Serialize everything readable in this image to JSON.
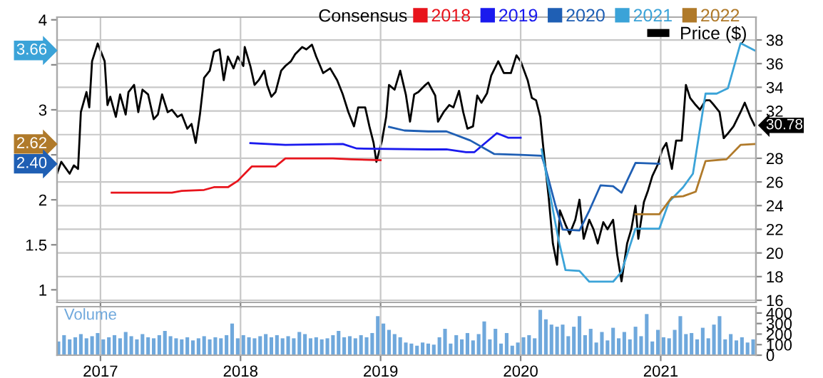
{
  "chart_data": [
    {
      "type": "line",
      "legend_title": "Consensus",
      "annotations": [
        "3.66",
        "2.62",
        "2.40"
      ],
      "legend": "top right",
      "grid": true,
      "tick_labels": "y",
      "xlim": [
        2016.69,
        2021.68
      ],
      "xticks": [
        2017,
        2018,
        2019,
        2020,
        2021
      ],
      "ylim": [
        0.86,
        4.03
      ],
      "yticks": [
        1,
        1.5,
        2,
        {
          "value": 2.5,
          "label": null
        },
        3,
        {
          "value": 3.5,
          "label": null
        },
        4
      ],
      "y2lim": [
        15.82,
        39.93
      ],
      "y2ticks": [
        16,
        18,
        20,
        22,
        24,
        26,
        28,
        {
          "value": 30,
          "label": null
        },
        32,
        34,
        36,
        38
      ],
      "series": [
        {
          "name": "2018",
          "color": "#e8141c",
          "x": [
            2017.08,
            2017.51,
            2017.58,
            2017.74,
            2017.81,
            2017.91,
            2017.98,
            2018.08,
            2018.25,
            2018.32,
            2018.66,
            2018.79,
            2019.0
          ],
          "values": [
            2.08,
            2.08,
            2.1,
            2.11,
            2.14,
            2.14,
            2.21,
            2.37,
            2.37,
            2.46,
            2.46,
            2.45,
            2.44
          ]
        },
        {
          "name": "2019",
          "color": "#1a1aee",
          "x": [
            2018.07,
            2018.32,
            2018.73,
            2018.83,
            2019.34,
            2019.47,
            2019.61,
            2019.67,
            2019.83,
            2019.91,
            2020.0
          ],
          "values": [
            2.63,
            2.61,
            2.62,
            2.57,
            2.56,
            2.56,
            2.53,
            2.53,
            2.74,
            2.69,
            2.69
          ]
        },
        {
          "name": "2020",
          "color": "#1f5fb4",
          "x": [
            2019.06,
            2019.17,
            2019.34,
            2019.47,
            2019.64,
            2019.81,
            2020.0,
            2020.15,
            2020.18,
            2020.25,
            2020.3,
            2020.42,
            2020.49,
            2020.57,
            2020.66,
            2020.72,
            2020.82,
            2020.99
          ],
          "values": [
            2.81,
            2.77,
            2.76,
            2.76,
            2.66,
            2.51,
            2.5,
            2.49,
            2.34,
            1.93,
            1.67,
            1.66,
            1.88,
            2.16,
            2.15,
            2.08,
            2.41,
            2.4
          ]
        },
        {
          "name": "2021",
          "color": "#3ba3d8",
          "x": [
            2020.15,
            2020.2,
            2020.27,
            2020.32,
            2020.42,
            2020.49,
            2020.66,
            2020.72,
            2020.82,
            2020.99,
            2021.06,
            2021.16,
            2021.23,
            2021.32,
            2021.4,
            2021.48,
            2021.57,
            2021.67
          ],
          "values": [
            2.56,
            2.14,
            1.56,
            1.22,
            1.21,
            1.09,
            1.09,
            1.2,
            1.68,
            1.68,
            1.98,
            2.14,
            2.29,
            3.18,
            3.18,
            3.24,
            3.74,
            3.66
          ]
        },
        {
          "name": "2022",
          "color": "#b07a2a",
          "x": [
            2020.82,
            2020.99,
            2021.08,
            2021.16,
            2021.25,
            2021.32,
            2021.47,
            2021.57,
            2021.67
          ],
          "values": [
            1.84,
            1.84,
            2.03,
            2.04,
            2.09,
            2.43,
            2.45,
            2.61,
            2.62
          ]
        },
        {
          "name": "Price ($)",
          "color": "#000000",
          "axis": "y2",
          "value_labels": [
            null,
            null,
            null,
            null,
            null,
            null,
            null,
            null,
            null,
            null,
            null,
            null,
            null,
            null,
            null,
            null,
            null,
            null,
            null,
            null,
            null,
            null,
            null,
            null,
            null,
            null,
            null,
            null,
            null,
            null,
            null,
            null,
            null,
            null,
            null,
            null,
            null,
            null,
            null,
            null,
            null,
            null,
            null,
            null,
            null,
            null,
            null,
            null,
            null,
            null,
            null,
            null,
            null,
            null,
            null,
            null,
            null,
            null,
            null,
            null,
            null,
            null,
            null,
            null,
            null,
            null,
            null,
            null,
            null,
            null,
            null,
            null,
            null,
            null,
            null,
            null,
            null,
            null,
            null,
            null,
            null,
            null,
            null,
            null,
            null,
            null,
            null,
            null,
            null,
            null,
            null,
            null,
            null,
            null,
            null,
            null,
            null,
            null,
            null,
            null,
            null,
            null,
            null,
            null,
            null,
            null,
            null,
            null,
            null,
            null,
            null,
            null,
            null,
            null,
            null,
            null,
            null,
            null,
            null,
            null,
            null,
            null,
            null,
            null,
            null,
            null,
            null,
            null,
            null,
            null,
            null,
            null,
            null,
            null,
            null,
            null,
            null,
            null,
            null,
            null,
            null,
            null,
            null,
            null,
            null,
            null,
            "30.78"
          ],
          "x": [
            2016.69,
            2016.72,
            2016.78,
            2016.81,
            2016.84,
            2016.86,
            2016.9,
            2016.92,
            2016.94,
            2016.98,
            2017.03,
            2017.05,
            2017.07,
            2017.11,
            2017.14,
            2017.18,
            2017.2,
            2017.24,
            2017.27,
            2017.3,
            2017.34,
            2017.38,
            2017.41,
            2017.44,
            2017.48,
            2017.51,
            2017.55,
            2017.58,
            2017.62,
            2017.65,
            2017.68,
            2017.71,
            2017.74,
            2017.78,
            2017.81,
            2017.85,
            2017.88,
            2017.91,
            2017.95,
            2017.98,
            2018.02,
            2018.03,
            2018.07,
            2018.1,
            2018.13,
            2018.17,
            2018.19,
            2018.22,
            2018.25,
            2018.29,
            2018.32,
            2018.36,
            2018.39,
            2018.44,
            2018.47,
            2018.51,
            2018.54,
            2018.59,
            2018.64,
            2018.69,
            2018.73,
            2018.77,
            2018.81,
            2018.84,
            2018.89,
            2018.92,
            2018.95,
            2018.97,
            2019.01,
            2019.04,
            2019.06,
            2019.1,
            2019.14,
            2019.18,
            2019.21,
            2019.24,
            2019.27,
            2019.32,
            2019.34,
            2019.39,
            2019.41,
            2019.45,
            2019.49,
            2019.52,
            2019.56,
            2019.59,
            2019.62,
            2019.66,
            2019.69,
            2019.72,
            2019.76,
            2019.79,
            2019.84,
            2019.88,
            2019.93,
            2019.97,
            2020.0,
            2020.05,
            2020.08,
            2020.11,
            2020.14,
            2020.16,
            2020.2,
            2020.23,
            2020.26,
            2020.28,
            2020.32,
            2020.35,
            2020.39,
            2020.42,
            2020.45,
            2020.49,
            2020.52,
            2020.55,
            2020.59,
            2020.62,
            2020.66,
            2020.69,
            2020.72,
            2020.76,
            2020.79,
            2020.82,
            2020.84,
            2020.88,
            2020.91,
            2020.94,
            2020.98,
            2021.01,
            2021.04,
            2021.08,
            2021.11,
            2021.15,
            2021.18,
            2021.21,
            2021.25,
            2021.28,
            2021.32,
            2021.35,
            2021.38,
            2021.42,
            2021.45,
            2021.48,
            2021.52,
            2021.57,
            2021.6,
            2021.64,
            2021.67
          ],
          "values": [
            26.7,
            27.7,
            26.7,
            27.4,
            27.1,
            31.9,
            33.6,
            32.3,
            36.2,
            37.7,
            36.2,
            32.5,
            33.2,
            31.5,
            33.4,
            31.7,
            33.6,
            34.2,
            31.9,
            33.8,
            33.4,
            31.3,
            31.7,
            33.4,
            31.9,
            32.1,
            31.5,
            31.7,
            30.5,
            30.9,
            29.3,
            31.7,
            34.8,
            35.4,
            37.0,
            37.2,
            34.6,
            36.6,
            35.6,
            36.6,
            35.8,
            37.4,
            35.8,
            34.2,
            34.6,
            35.4,
            34.2,
            33.2,
            33.6,
            35.4,
            35.8,
            36.2,
            36.8,
            37.4,
            37.2,
            37.6,
            36.6,
            35.2,
            35.6,
            34.6,
            33.4,
            31.9,
            30.7,
            32.3,
            32.3,
            30.7,
            29.3,
            27.7,
            29.5,
            31.5,
            34.2,
            33.8,
            35.4,
            33.4,
            31.1,
            33.4,
            33.6,
            34.2,
            34.4,
            33.3,
            31.1,
            31.9,
            32.5,
            32.3,
            33.7,
            31.9,
            30.5,
            30.7,
            33.3,
            32.7,
            33.5,
            35.0,
            36.2,
            35.2,
            35.2,
            36.7,
            36.2,
            34.6,
            33.1,
            32.9,
            31.5,
            29.1,
            24.7,
            20.8,
            19.0,
            23.6,
            22.4,
            21.6,
            22.8,
            24.5,
            21.2,
            22.8,
            22.0,
            20.8,
            22.6,
            22.0,
            22.8,
            19.8,
            17.6,
            20.8,
            22.0,
            24.0,
            21.2,
            24.3,
            25.3,
            26.5,
            27.5,
            28.7,
            29.3,
            27.1,
            29.5,
            29.5,
            34.2,
            33.1,
            32.5,
            32.1,
            32.9,
            32.9,
            32.5,
            31.9,
            29.7,
            30.1,
            30.7,
            31.9,
            32.7,
            31.5,
            30.78
          ]
        }
      ]
    },
    {
      "type": "bar",
      "grid": "x",
      "xlim": [
        2016.69,
        2021.68
      ],
      "xticks": [
        2017,
        2018,
        2019,
        2020,
        2021
      ],
      "y2lim": [
        0,
        460
      ],
      "y2ticks": [
        0,
        100,
        200,
        300,
        400
      ],
      "series": [
        {
          "name": "Volume",
          "color": "#6fa8dc",
          "axis": "y2",
          "x": [
            2016.7,
            2016.74,
            2016.78,
            2016.82,
            2016.86,
            2016.9,
            2016.94,
            2016.98,
            2017.02,
            2017.06,
            2017.1,
            2017.14,
            2017.18,
            2017.22,
            2017.26,
            2017.3,
            2017.34,
            2017.38,
            2017.42,
            2017.46,
            2017.5,
            2017.54,
            2017.58,
            2017.62,
            2017.66,
            2017.7,
            2017.74,
            2017.78,
            2017.82,
            2017.86,
            2017.9,
            2017.94,
            2017.98,
            2018.02,
            2018.06,
            2018.1,
            2018.14,
            2018.18,
            2018.22,
            2018.26,
            2018.3,
            2018.34,
            2018.38,
            2018.42,
            2018.46,
            2018.5,
            2018.54,
            2018.58,
            2018.62,
            2018.66,
            2018.7,
            2018.74,
            2018.78,
            2018.82,
            2018.86,
            2018.9,
            2018.94,
            2018.98,
            2019.02,
            2019.06,
            2019.1,
            2019.14,
            2019.18,
            2019.22,
            2019.26,
            2019.3,
            2019.34,
            2019.38,
            2019.42,
            2019.46,
            2019.5,
            2019.54,
            2019.58,
            2019.62,
            2019.66,
            2019.7,
            2019.74,
            2019.78,
            2019.82,
            2019.86,
            2019.9,
            2019.94,
            2019.98,
            2020.02,
            2020.06,
            2020.1,
            2020.14,
            2020.18,
            2020.22,
            2020.26,
            2020.3,
            2020.34,
            2020.38,
            2020.42,
            2020.46,
            2020.5,
            2020.54,
            2020.58,
            2020.62,
            2020.66,
            2020.7,
            2020.74,
            2020.78,
            2020.82,
            2020.86,
            2020.9,
            2020.94,
            2020.98,
            2021.02,
            2021.06,
            2021.1,
            2021.14,
            2021.18,
            2021.22,
            2021.26,
            2021.3,
            2021.34,
            2021.38,
            2021.42,
            2021.46,
            2021.5,
            2021.54,
            2021.58,
            2021.62,
            2021.66
          ],
          "values": [
            130,
            190,
            150,
            170,
            200,
            160,
            180,
            210,
            150,
            170,
            190,
            160,
            220,
            180,
            150,
            200,
            170,
            160,
            190,
            230,
            180,
            160,
            150,
            170,
            140,
            160,
            180,
            150,
            170,
            160,
            190,
            300,
            160,
            190,
            170,
            160,
            180,
            200,
            170,
            190,
            160,
            180,
            160,
            220,
            200,
            160,
            170,
            150,
            160,
            190,
            230,
            170,
            180,
            160,
            190,
            170,
            210,
            370,
            300,
            240,
            200,
            170,
            120,
            110,
            90,
            120,
            110,
            100,
            170,
            250,
            110,
            190,
            150,
            210,
            140,
            200,
            320,
            150,
            250,
            110,
            210,
            90,
            120,
            170,
            190,
            160,
            430,
            340,
            290,
            270,
            290,
            180,
            270,
            370,
            190,
            250,
            120,
            220,
            140,
            260,
            160,
            220,
            150,
            270,
            180,
            390,
            130,
            240,
            170,
            160,
            240,
            370,
            200,
            210,
            150,
            260,
            160,
            290,
            370,
            150,
            200,
            140,
            170,
            120,
            150
          ]
        }
      ]
    }
  ]
}
